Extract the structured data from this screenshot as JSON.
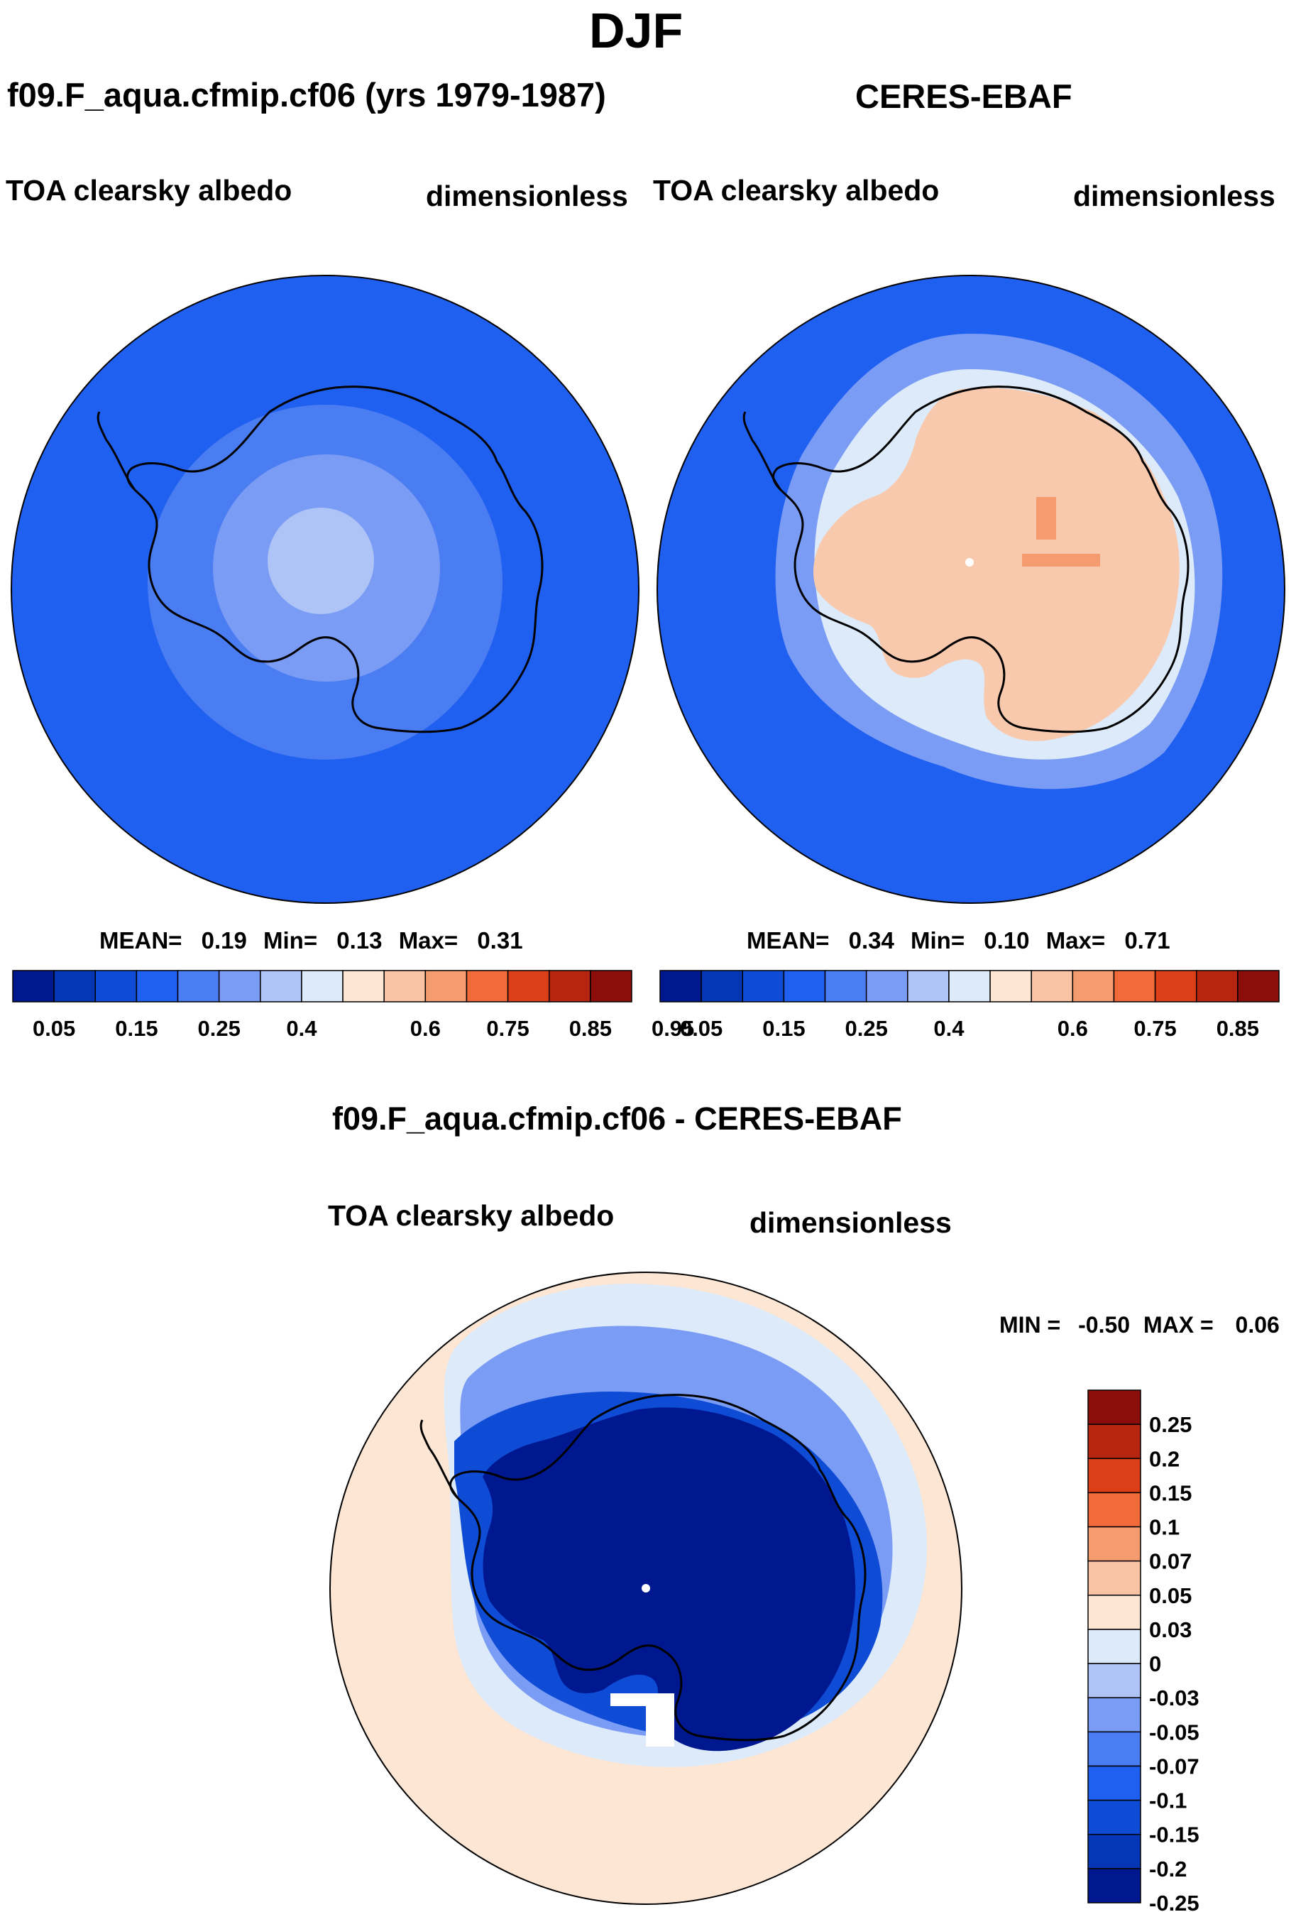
{
  "page_title": "DJF",
  "panels": [
    {
      "id": "model",
      "title": "f09.F_aqua.cfmip.cf06 (yrs 1979-1987)",
      "variable": "TOA clearsky albedo",
      "units": "dimensionless",
      "stats": {
        "mean_label": "MEAN=",
        "mean": "0.19",
        "min_label": "Min=",
        "min": "0.13",
        "max_label": "Max=",
        "max": "0.31"
      }
    },
    {
      "id": "obs",
      "title": "CERES-EBAF",
      "variable": "TOA clearsky albedo",
      "units": "dimensionless",
      "stats": {
        "mean_label": "MEAN=",
        "mean": "0.34",
        "min_label": "Min=",
        "min": "0.10",
        "max_label": "Max=",
        "max": "0.71"
      }
    },
    {
      "id": "diff",
      "title": "f09.F_aqua.cfmip.cf06 - CERES-EBAF",
      "variable": "TOA clearsky albedo",
      "units": "dimensionless",
      "stats": {
        "min_label": "MIN =",
        "min": "-0.50",
        "max_label": "MAX =",
        "max": "0.06"
      }
    }
  ],
  "colorbar_abs": {
    "colors": [
      "#00188f",
      "#0536b5",
      "#0f4cd6",
      "#1f60f0",
      "#4a7cf2",
      "#7b9cf5",
      "#aec4f7",
      "#dceaf9",
      "#fde6d3",
      "#f9c2a2",
      "#f59b70",
      "#f06a3a",
      "#dc3f17",
      "#b52510",
      "#8c0e0a"
    ],
    "labels": [
      "0.05",
      "0.15",
      "0.25",
      "0.4",
      "0.6",
      "0.75",
      "0.85",
      "0.95"
    ]
  },
  "colorbar_diff": {
    "colors": [
      "#8c0e0a",
      "#b52510",
      "#dc3f17",
      "#f06a3a",
      "#f59b70",
      "#f9c2a2",
      "#fde6d3",
      "#dceaf9",
      "#aec4f7",
      "#7b9cf5",
      "#4a7cf2",
      "#1f60f0",
      "#0f4cd6",
      "#0536b5",
      "#00188f"
    ],
    "labels": [
      "0.25",
      "0.2",
      "0.15",
      "0.1",
      "0.07",
      "0.05",
      "0.03",
      "0",
      "-0.03",
      "-0.05",
      "-0.07",
      "-0.1",
      "-0.15",
      "-0.2",
      "-0.25"
    ]
  },
  "map_colors": {
    "model_ocean": "#1f60f0",
    "model_rings": [
      "#1f60f0",
      "#4a7cf2",
      "#7b9cf5",
      "#aec4f7"
    ],
    "obs_ocean": "#1f60f0",
    "obs_ice": "#7b9cf5",
    "obs_ice_edge": "#dceaf9",
    "obs_land": "#f9c9ad",
    "diff_background": "#fde6d3",
    "diff_land": "#00188f",
    "coastline": "#000000"
  }
}
